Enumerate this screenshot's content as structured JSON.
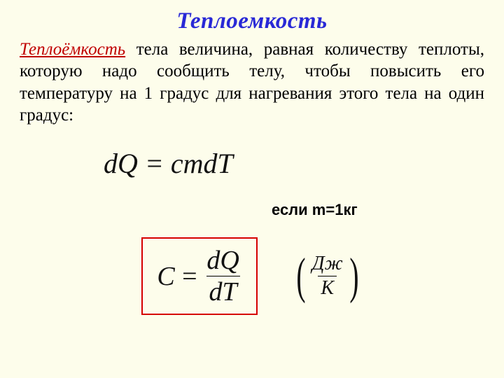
{
  "colors": {
    "background": "#fdfdeb",
    "title": "#2929d6",
    "term": "#c00000",
    "box_border": "#d60000",
    "text": "#000000"
  },
  "title": "Теплоемкость",
  "term": "Теплоёмкость",
  "definition_rest": " тела величина, равная  количеству теплоты, которую надо сообщить телу, чтобы повысить его температуру на 1 градус для нагревания этого тела на один градус:",
  "formula1": "dQ = cmdT",
  "condition": "если m=1кг",
  "formula2": {
    "lhs": "C",
    "eq": "=",
    "num": "dQ",
    "den": "dT"
  },
  "units": {
    "num": "Дж",
    "den": "К"
  }
}
